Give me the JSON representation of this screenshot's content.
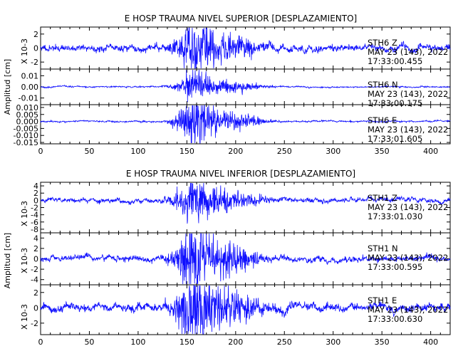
{
  "chart_data": [
    {
      "type": "line",
      "title": "E HOSP TRAUMA NIVEL SUPERIOR [DESPLAZAMIENTO]",
      "ylabel": "Amplitud [cm]",
      "xlim": [
        0,
        420
      ],
      "x_ticks": [
        "0",
        "50",
        "100",
        "150",
        "200",
        "250",
        "300",
        "350",
        "400"
      ],
      "panels": [
        {
          "station": "STH6   Z",
          "date": "MAY 23 (143), 2022",
          "time": "17:33:00.455",
          "scale_label": "X 10-3",
          "ylim": [
            -3,
            3
          ],
          "y_ticks": [
            {
              "v": 2,
              "label": "2"
            },
            {
              "v": 0,
              "label": "0"
            },
            {
              "v": -2,
              "label": "-2"
            }
          ],
          "noise": 0.55,
          "burst": 1.8,
          "seed": 11
        },
        {
          "station": "STH6   N",
          "date": "MAY 23 (143), 2022",
          "time": "17:33:00.175",
          "scale_label": "",
          "ylim": [
            -0.016,
            0.016
          ],
          "y_ticks": [
            {
              "v": 0.01,
              "label": "0.01"
            },
            {
              "v": 0,
              "label": "0.00"
            },
            {
              "v": -0.01,
              "label": "-0.01"
            }
          ],
          "noise": 0.0007,
          "burst": 0.006,
          "seed": 23
        },
        {
          "station": "STH6   E",
          "date": "MAY 23 (143), 2022",
          "time": "17:33:01.605",
          "scale_label": "",
          "ylim": [
            -0.016,
            0.012
          ],
          "y_ticks": [
            {
              "v": 0.01,
              "label": "0.010"
            },
            {
              "v": 0.005,
              "label": "0.005"
            },
            {
              "v": 0,
              "label": "0.000"
            },
            {
              "v": -0.005,
              "label": "-0.005"
            },
            {
              "v": -0.01,
              "label": "-0.010"
            },
            {
              "v": -0.015,
              "label": "-0.015"
            }
          ],
          "noise": 0.0006,
          "burst": 0.0085,
          "seed": 37
        }
      ]
    },
    {
      "type": "line",
      "title": "E HOSP TRAUMA NIVEL INFERIOR [DESPLAZAMIENTO]",
      "ylabel": "Amplitud [cm]",
      "xlim": [
        0,
        420
      ],
      "x_ticks": [
        "0",
        "50",
        "100",
        "150",
        "200",
        "250",
        "300",
        "350",
        "400"
      ],
      "panels": [
        {
          "station": "STH1   Z",
          "date": "MAY 23 (143), 2022",
          "time": "17:33:01.030",
          "scale_label": "X 10-3",
          "ylim": [
            -9,
            5
          ],
          "y_ticks": [
            {
              "v": 4,
              "label": "4"
            },
            {
              "v": 2,
              "label": "2"
            },
            {
              "v": 0,
              "label": "0"
            },
            {
              "v": -2,
              "label": "-2"
            },
            {
              "v": -4,
              "label": "-4"
            },
            {
              "v": -6,
              "label": "-6"
            },
            {
              "v": -8,
              "label": "-8"
            }
          ],
          "noise": 0.7,
          "burst": 3.0,
          "seed": 51
        },
        {
          "station": "STH1   N",
          "date": "MAY 23 (143), 2022",
          "time": "17:33:00.595",
          "scale_label": "X 10-3",
          "ylim": [
            -5,
            5
          ],
          "y_ticks": [
            {
              "v": 4,
              "label": "4"
            },
            {
              "v": 2,
              "label": "2"
            },
            {
              "v": 0,
              "label": "0"
            },
            {
              "v": -2,
              "label": "-2"
            },
            {
              "v": -4,
              "label": "-4"
            }
          ],
          "noise": 0.6,
          "burst": 3.2,
          "seed": 67
        },
        {
          "station": "STH1   E",
          "date": "MAY 23 (143), 2022",
          "time": "17:33:00.630",
          "scale_label": "X 10-3",
          "ylim": [
            -3.5,
            3
          ],
          "y_ticks": [
            {
              "v": 2,
              "label": "2"
            },
            {
              "v": 0,
              "label": "0"
            },
            {
              "v": -2,
              "label": "-2"
            }
          ],
          "noise": 0.6,
          "burst": 2.2,
          "seed": 83
        }
      ]
    }
  ]
}
